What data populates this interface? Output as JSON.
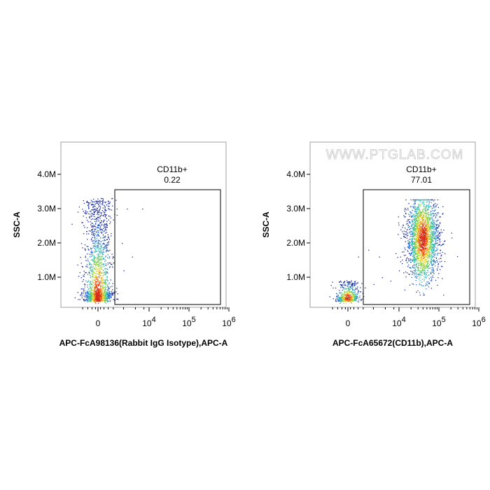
{
  "watermark": "WWW.PTGLAB.COM",
  "chart_data": [
    {
      "type": "scatter",
      "xlabel": "APC-FcA98136(Rabbit IgG Isotype),APC-A",
      "ylabel": "SSC-A",
      "y_ticks": [
        "1.0M",
        "2.0M",
        "3.0M",
        "4.0M"
      ],
      "x_ticks": [
        {
          "base": "0",
          "exp": ""
        },
        {
          "base": "10",
          "exp": "4"
        },
        {
          "base": "10",
          "exp": "5"
        },
        {
          "base": "10",
          "exp": "6"
        }
      ],
      "x_scale": "biexponential",
      "ylim": [
        0,
        4.9
      ],
      "gate": {
        "name": "CD11b+",
        "value": "0.22"
      },
      "populations": [
        {
          "x_center": 0,
          "x_spread": 0.9,
          "y_min": 0.3,
          "y_max": 3.3,
          "count": 1800,
          "peak_y": 0.45
        }
      ],
      "sparse_points": [
        [
          1.1,
          3.0
        ],
        [
          1.7,
          3.0
        ],
        [
          2.6,
          3.0
        ],
        [
          1.4,
          2.0
        ],
        [
          2.0,
          1.6
        ],
        [
          1.5,
          1.2
        ],
        [
          0.8,
          0.75
        ]
      ]
    },
    {
      "type": "scatter",
      "xlabel": "APC-FcA65672(CD11b),APC-A",
      "ylabel": "SSC-A",
      "y_ticks": [
        "1.0M",
        "2.0M",
        "3.0M",
        "4.0M"
      ],
      "x_ticks": [
        {
          "base": "0",
          "exp": ""
        },
        {
          "base": "10",
          "exp": "4"
        },
        {
          "base": "10",
          "exp": "5"
        },
        {
          "base": "10",
          "exp": "6"
        }
      ],
      "x_scale": "biexponential",
      "ylim": [
        0,
        4.9
      ],
      "gate": {
        "name": "CD11b+",
        "value": "77.01"
      },
      "populations": [
        {
          "x_center": 0,
          "x_spread": 0.8,
          "y_min": 0.3,
          "y_max": 0.9,
          "count": 500,
          "peak_y": 0.4
        },
        {
          "x_center": 4.6,
          "x_spread": 0.45,
          "y_min": 0.6,
          "y_max": 3.1,
          "count": 2300,
          "peak_y": 2.1
        }
      ],
      "sparse_points": [
        [
          1.0,
          0.7
        ],
        [
          1.5,
          0.8
        ],
        [
          2.0,
          1.0
        ],
        [
          2.5,
          0.9
        ],
        [
          3.0,
          1.2
        ],
        [
          1.2,
          1.8
        ],
        [
          3.5,
          1.6
        ],
        [
          0.6,
          1.6
        ],
        [
          2.8,
          1.7
        ]
      ]
    }
  ]
}
